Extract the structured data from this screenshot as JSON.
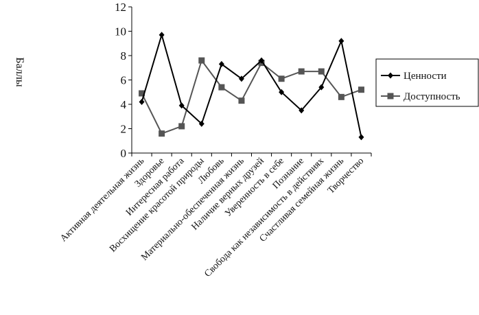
{
  "chart_data": {
    "type": "line",
    "title": "",
    "xlabel": "",
    "ylabel": "Баллы",
    "ylim": [
      0,
      12
    ],
    "yticks": [
      0,
      2,
      4,
      6,
      8,
      10,
      12
    ],
    "grid": false,
    "legend_position": "right",
    "categories": [
      "Активная деятельная жизнь",
      "Здоровье",
      "Интересная работа",
      "Восхищение красотой природы",
      "Любовь",
      "Материально-обеспеченная жизнь",
      "Наличие верных друзей",
      "Уверенность в себе",
      "Познание",
      "Свобода как независимость в действиях",
      "Счастливая семейная жизнь",
      "Творчество"
    ],
    "series": [
      {
        "name": "Ценности",
        "marker": "diamond",
        "color": "#000000",
        "values": [
          4.2,
          9.7,
          3.9,
          2.4,
          7.3,
          6.1,
          7.6,
          5.0,
          3.5,
          5.4,
          9.2,
          1.3
        ]
      },
      {
        "name": "Доступность",
        "marker": "square",
        "color": "#555555",
        "values": [
          4.9,
          1.6,
          2.2,
          7.6,
          5.4,
          4.3,
          7.4,
          6.1,
          6.7,
          6.7,
          4.6,
          5.2
        ]
      }
    ]
  }
}
